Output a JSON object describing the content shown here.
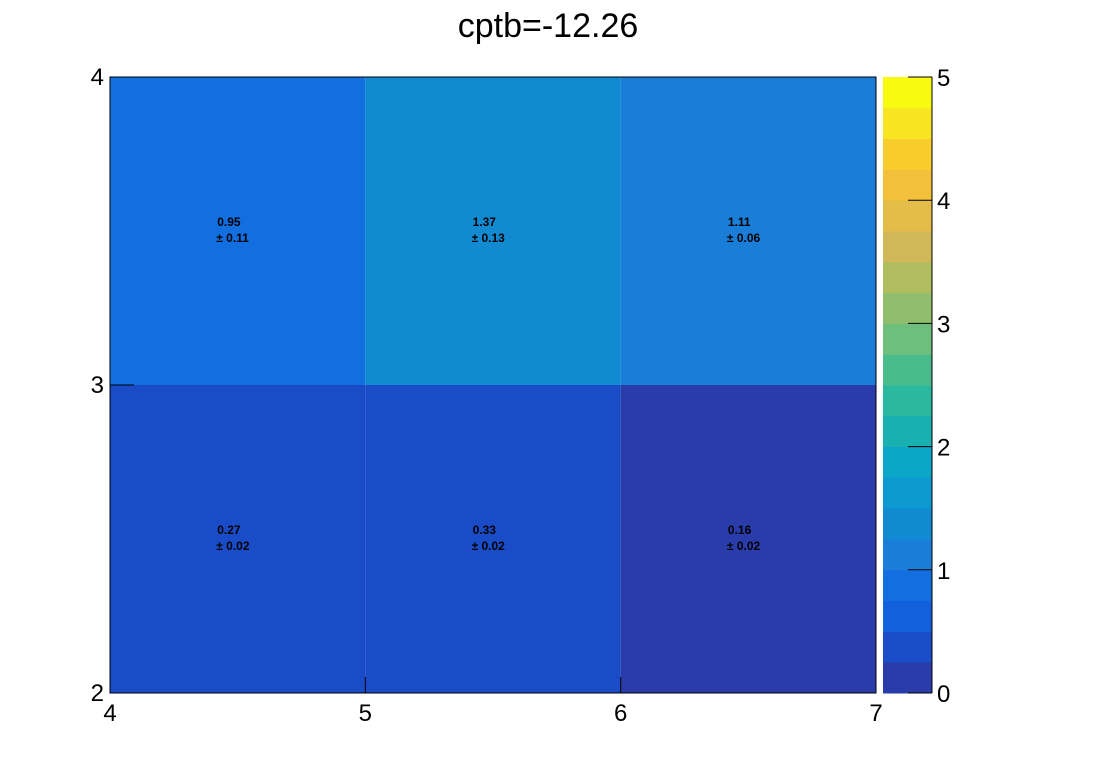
{
  "chart_data": {
    "type": "heatmap",
    "title": "cptb=-12.26",
    "x_edges": [
      4,
      5,
      6,
      7
    ],
    "y_edges": [
      2,
      3,
      4
    ],
    "xlim": [
      4,
      7
    ],
    "ylim": [
      2,
      4
    ],
    "x_tick_labels": [
      "4",
      "5",
      "6",
      "7"
    ],
    "y_tick_labels": [
      "2",
      "3",
      "4"
    ],
    "cells": [
      {
        "x": 4.5,
        "y": 3.5,
        "value": 0.95,
        "error": 0.11,
        "value_label": "0.95",
        "error_label": "± 0.11"
      },
      {
        "x": 5.5,
        "y": 3.5,
        "value": 1.37,
        "error": 0.13,
        "value_label": "1.37",
        "error_label": "± 0.13"
      },
      {
        "x": 6.5,
        "y": 3.5,
        "value": 1.11,
        "error": 0.06,
        "value_label": "1.11",
        "error_label": "± 0.06"
      },
      {
        "x": 4.5,
        "y": 2.5,
        "value": 0.27,
        "error": 0.02,
        "value_label": "0.27",
        "error_label": "± 0.02"
      },
      {
        "x": 5.5,
        "y": 2.5,
        "value": 0.33,
        "error": 0.02,
        "value_label": "0.33",
        "error_label": "± 0.02"
      },
      {
        "x": 6.5,
        "y": 2.5,
        "value": 0.16,
        "error": 0.02,
        "value_label": "0.16",
        "error_label": "± 0.02"
      }
    ],
    "colorbar": {
      "range": [
        0,
        5
      ],
      "tick_labels": [
        "0",
        "1",
        "2",
        "3",
        "4",
        "5"
      ],
      "colors": [
        "#2a3ca9",
        "#1a4cc8",
        "#1360dc",
        "#136ee0",
        "#1a7ed8",
        "#118ad2",
        "#0b99d0",
        "#09a6c8",
        "#18b0b0",
        "#2ab8a0",
        "#4abc8c",
        "#6ebe7c",
        "#90be6c",
        "#b0bc60",
        "#d0b858",
        "#e4bc48",
        "#f2c03a",
        "#f8cc2c",
        "#f8e420",
        "#f8fa10"
      ]
    }
  }
}
